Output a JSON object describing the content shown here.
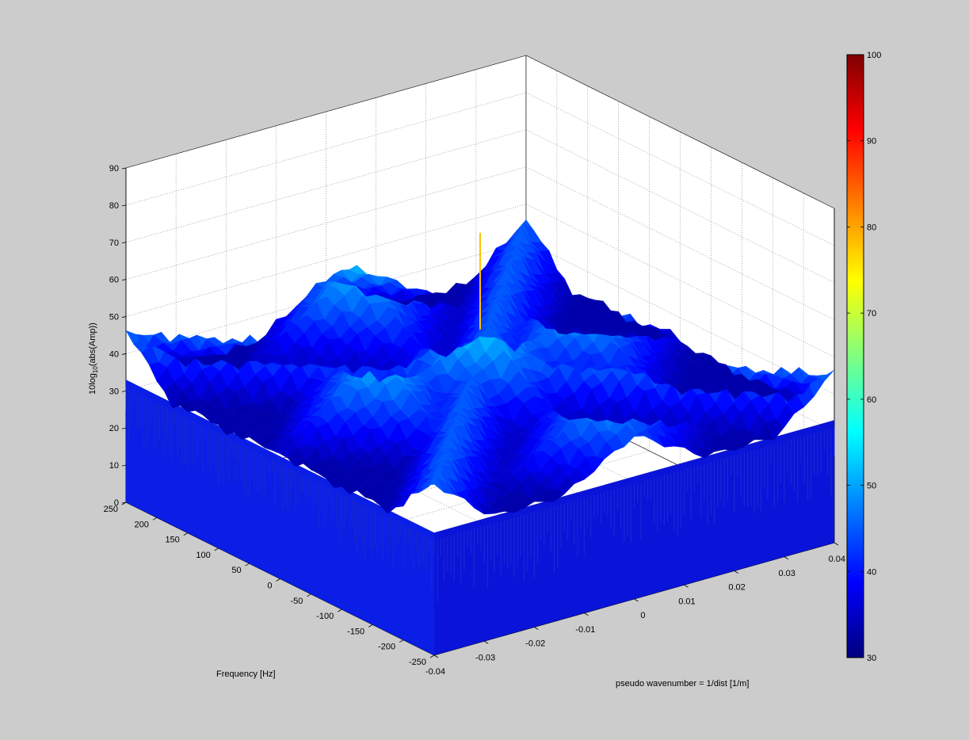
{
  "chart_data": {
    "type": "surface3d",
    "title": "",
    "xlabel": "pseudo wavenumber = 1/dist [1/m]",
    "ylabel": "Frequency [Hz]",
    "zlabel_main": "10log",
    "zlabel_sub": "10",
    "zlabel_rest": "(abs(Amp))",
    "x_ticks": [
      "-0.04",
      "-0.03",
      "-0.02",
      "-0.01",
      "0",
      "0.01",
      "0.02",
      "0.03",
      "0.04"
    ],
    "x_tick_values": [
      -0.04,
      -0.03,
      -0.02,
      -0.01,
      0,
      0.01,
      0.02,
      0.03,
      0.04
    ],
    "y_ticks": [
      "-250",
      "-200",
      "-150",
      "-100",
      "-50",
      "0",
      "50",
      "100",
      "150",
      "200",
      "250"
    ],
    "y_tick_values": [
      -250,
      -200,
      -150,
      -100,
      -50,
      0,
      50,
      100,
      150,
      200,
      250
    ],
    "z_ticks": [
      "0",
      "10",
      "20",
      "30",
      "40",
      "50",
      "60",
      "70",
      "80",
      "90"
    ],
    "z_tick_values": [
      0,
      10,
      20,
      30,
      40,
      50,
      60,
      70,
      80,
      90
    ],
    "xlim": [
      -0.04,
      0.04
    ],
    "ylim": [
      -250,
      250
    ],
    "zlim": [
      0,
      90
    ],
    "grid": true,
    "colormap": "jet",
    "colorbar": {
      "range": [
        30,
        100
      ],
      "ticks": [
        "30",
        "40",
        "50",
        "60",
        "70",
        "80",
        "90",
        "100"
      ],
      "tick_values": [
        30,
        40,
        50,
        60,
        70,
        80,
        90,
        100
      ]
    },
    "surface": {
      "noise_floor_db": 33,
      "peak": {
        "x": 0.0,
        "y": 0,
        "z": 78
      },
      "features": [
        {
          "x": 0.0,
          "y": 0,
          "z": 55
        },
        {
          "x": 0.0,
          "y": 200,
          "z": 52
        },
        {
          "x": 0.0,
          "y": -200,
          "z": 50
        },
        {
          "x": 0.02,
          "y": 0,
          "z": 52
        },
        {
          "x": -0.02,
          "y": 0,
          "z": 52
        }
      ]
    }
  }
}
